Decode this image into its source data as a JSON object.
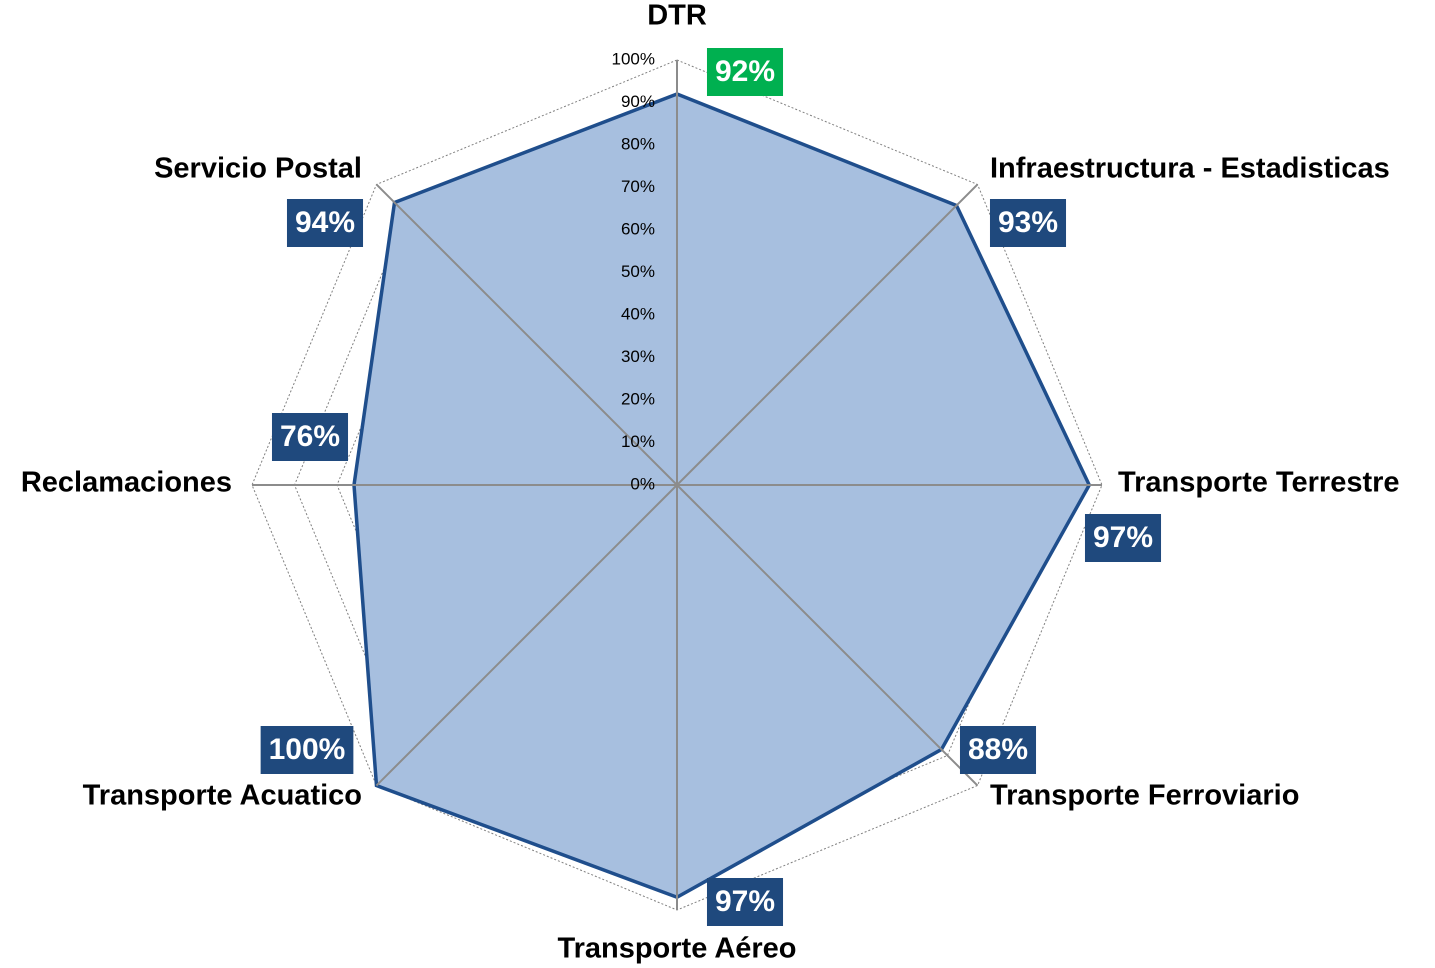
{
  "chart_data": {
    "type": "radar",
    "categories": [
      "DTR",
      "Infraestructura - Estadisticas",
      "Transporte Terrestre",
      "Transporte Ferroviario",
      "Transporte Aéreo",
      "Transporte Acuatico",
      "Reclamaciones",
      "Servicio Postal"
    ],
    "series": [
      {
        "color": "#1f4e8c",
        "fill": "#a7bfdf",
        "values": [
          92,
          93,
          97,
          88,
          97,
          100,
          76,
          94
        ],
        "value_labels": [
          "92%",
          "93%",
          "97%",
          "88%",
          "97%",
          "100%",
          "76%",
          "94%"
        ],
        "value_label_colors": [
          "#00b050",
          "#1f497d",
          "#1f497d",
          "#1f497d",
          "#1f497d",
          "#1f497d",
          "#1f497d",
          "#1f497d"
        ]
      }
    ],
    "ylim": [
      0,
      100
    ],
    "yticks": [
      {
        "value": 0,
        "label": "0%"
      },
      {
        "value": 10,
        "label": "10%"
      },
      {
        "value": 20,
        "label": "20%"
      },
      {
        "value": 30,
        "label": "30%"
      },
      {
        "value": 40,
        "label": "40%"
      },
      {
        "value": 50,
        "label": "50%"
      },
      {
        "value": 60,
        "label": "60%"
      },
      {
        "value": 70,
        "label": "70%"
      },
      {
        "value": 80,
        "label": "80%"
      },
      {
        "value": 90,
        "label": "90%"
      },
      {
        "value": 100,
        "label": "100%"
      }
    ],
    "grid": true
  }
}
